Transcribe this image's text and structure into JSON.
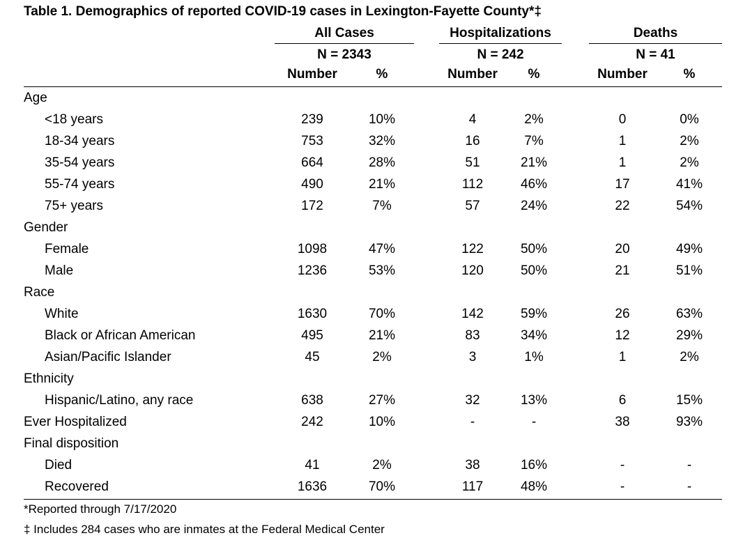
{
  "title": "Table 1. Demographics of reported COVID-19 cases in Lexington-Fayette County*‡",
  "groups": [
    {
      "name": "All Cases",
      "n": "N = 2343"
    },
    {
      "name": "Hospitalizations",
      "n": "N = 242"
    },
    {
      "name": "Deaths",
      "n": "N = 41"
    }
  ],
  "subheaders": {
    "number": "Number",
    "pct": "%"
  },
  "rows": [
    {
      "label": "Age",
      "indent": false,
      "values": [
        "",
        "",
        "",
        "",
        "",
        ""
      ]
    },
    {
      "label": "<18 years",
      "indent": true,
      "values": [
        "239",
        "10%",
        "4",
        "2%",
        "0",
        "0%"
      ]
    },
    {
      "label": "18-34 years",
      "indent": true,
      "values": [
        "753",
        "32%",
        "16",
        "7%",
        "1",
        "2%"
      ]
    },
    {
      "label": "35-54 years",
      "indent": true,
      "values": [
        "664",
        "28%",
        "51",
        "21%",
        "1",
        "2%"
      ]
    },
    {
      "label": "55-74 years",
      "indent": true,
      "values": [
        "490",
        "21%",
        "112",
        "46%",
        "17",
        "41%"
      ]
    },
    {
      "label": "75+ years",
      "indent": true,
      "values": [
        "172",
        "7%",
        "57",
        "24%",
        "22",
        "54%"
      ]
    },
    {
      "label": "Gender",
      "indent": false,
      "values": [
        "",
        "",
        "",
        "",
        "",
        ""
      ]
    },
    {
      "label": "Female",
      "indent": true,
      "values": [
        "1098",
        "47%",
        "122",
        "50%",
        "20",
        "49%"
      ]
    },
    {
      "label": "Male",
      "indent": true,
      "values": [
        "1236",
        "53%",
        "120",
        "50%",
        "21",
        "51%"
      ]
    },
    {
      "label": "Race",
      "indent": false,
      "values": [
        "",
        "",
        "",
        "",
        "",
        ""
      ]
    },
    {
      "label": "White",
      "indent": true,
      "values": [
        "1630",
        "70%",
        "142",
        "59%",
        "26",
        "63%"
      ]
    },
    {
      "label": "Black or African American",
      "indent": true,
      "values": [
        "495",
        "21%",
        "83",
        "34%",
        "12",
        "29%"
      ]
    },
    {
      "label": "Asian/Pacific Islander",
      "indent": true,
      "values": [
        "45",
        "2%",
        "3",
        "1%",
        "1",
        "2%"
      ]
    },
    {
      "label": "Ethnicity",
      "indent": false,
      "values": [
        "",
        "",
        "",
        "",
        "",
        ""
      ]
    },
    {
      "label": "Hispanic/Latino, any race",
      "indent": true,
      "values": [
        "638",
        "27%",
        "32",
        "13%",
        "6",
        "15%"
      ]
    },
    {
      "label": "Ever Hospitalized",
      "indent": false,
      "values": [
        "242",
        "10%",
        "-",
        "-",
        "38",
        "93%"
      ]
    },
    {
      "label": "Final disposition",
      "indent": false,
      "values": [
        "",
        "",
        "",
        "",
        "",
        ""
      ]
    },
    {
      "label": "Died",
      "indent": true,
      "values": [
        "41",
        "2%",
        "38",
        "16%",
        "-",
        "-"
      ]
    },
    {
      "label": "Recovered",
      "indent": true,
      "values": [
        "1636",
        "70%",
        "117",
        "48%",
        "-",
        "-"
      ]
    }
  ],
  "footnotes": [
    "*Reported through 7/17/2020",
    "‡ Includes 284 cases who are inmates at the Federal Medical Center"
  ]
}
